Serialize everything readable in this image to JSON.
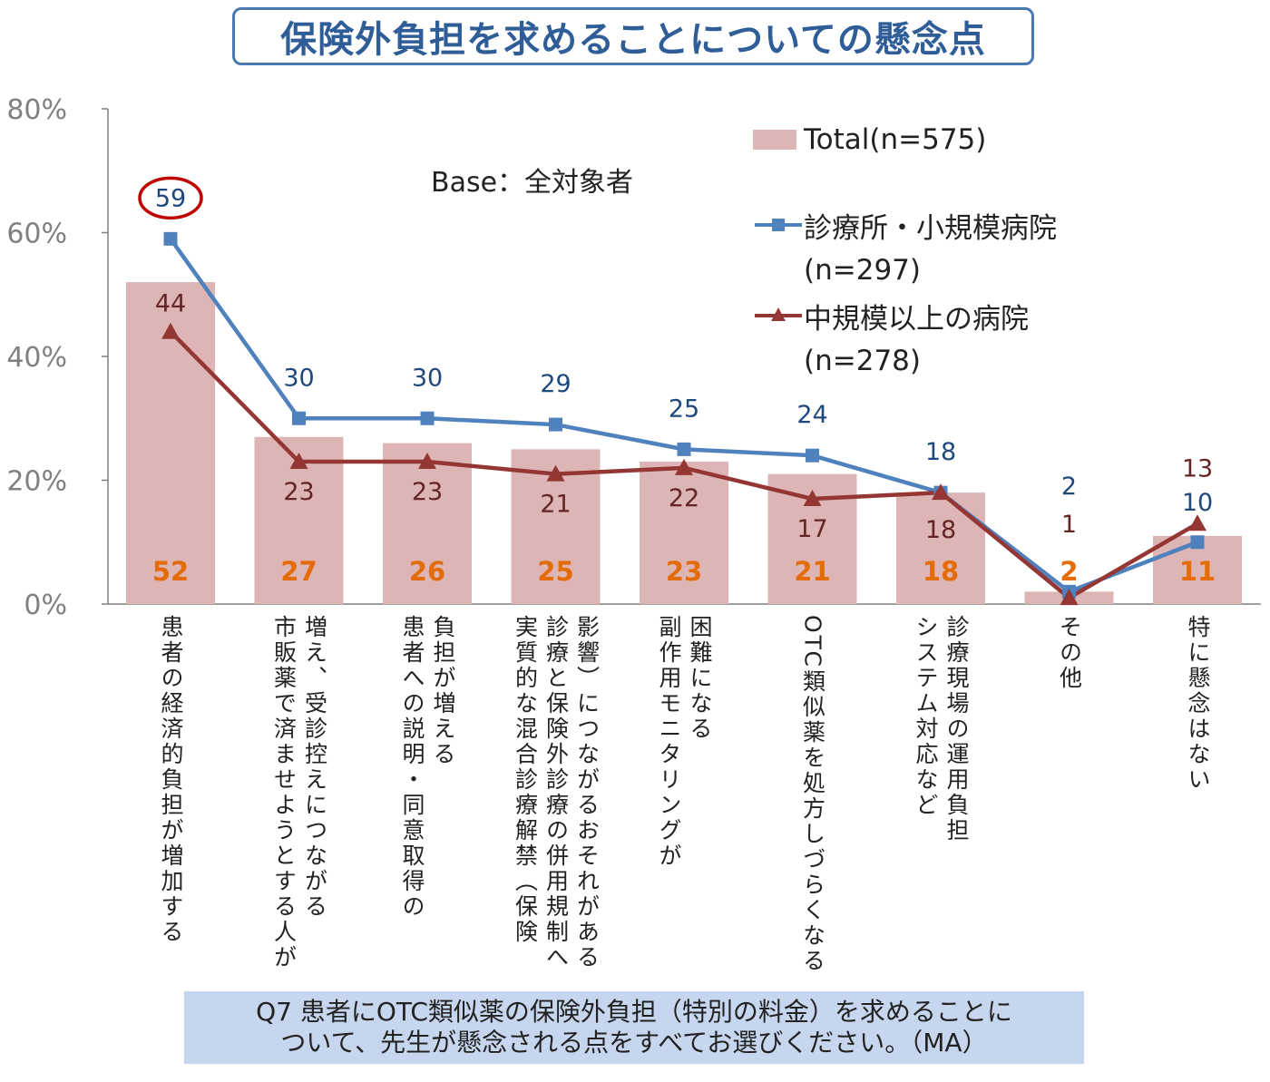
{
  "title": "保険外負担を求めることについての懸念点",
  "base_note": "Base：全対象者",
  "legend": {
    "total": "Total(n=575)",
    "clinic": "診療所・小規模病院",
    "clinic_n": "(n=297)",
    "hospital": "中規模以上の病院",
    "hospital_n": "(n=278)"
  },
  "question": {
    "line1": "Q7  患者にOTC類似薬の保険外負担（特別の料金）を求めることに",
    "line2": "ついて、先生が懸念される点をすべてお選びください。（MA）"
  },
  "colors": {
    "bar": "#deb5b5",
    "clinic": "#4f81bd",
    "hospital": "#943634",
    "total_label": "#e36c09",
    "clinic_label": "#1f497d",
    "hospital_label": "#632523",
    "title_border": "#4a78b0",
    "question_bg": "#c6d6ee",
    "highlight_circle": "#c00000"
  },
  "chart_data": {
    "type": "bar",
    "y_tick_labels": [
      "0%",
      "20%",
      "40%",
      "60%",
      "80%"
    ],
    "ylim": [
      0,
      80
    ],
    "categories": [
      [
        "患者の経済的負担が増加する"
      ],
      [
        "増え、受診控えにつながる",
        "市販薬で済ませようとする人が"
      ],
      [
        "負担が増える",
        "患者への説明・同意取得の"
      ],
      [
        "影響）につながるおそれがある",
        "診療と保険外診療の併用規制へ",
        "実質的な混合診療解禁（保険"
      ],
      [
        "困難になる",
        "副作用モニタリングが"
      ],
      [
        "OTC類似薬を処方しづらくなる"
      ],
      [
        "診療現場の運用負担",
        "システム対応など"
      ],
      [
        "その他"
      ],
      [
        "特に懸念はない"
      ]
    ],
    "series": [
      {
        "name": "Total(n=575)",
        "type": "bar",
        "values": [
          52,
          27,
          26,
          25,
          23,
          21,
          18,
          2,
          11
        ]
      },
      {
        "name": "診療所・小規模病院 (n=297)",
        "type": "line",
        "marker": "square",
        "values": [
          59,
          30,
          30,
          29,
          25,
          24,
          18,
          2,
          10
        ]
      },
      {
        "name": "中規模以上の病院 (n=278)",
        "type": "line",
        "marker": "triangle",
        "values": [
          44,
          23,
          23,
          21,
          22,
          17,
          18,
          1,
          13
        ]
      }
    ],
    "highlight": {
      "series": 1,
      "index": 0
    }
  }
}
